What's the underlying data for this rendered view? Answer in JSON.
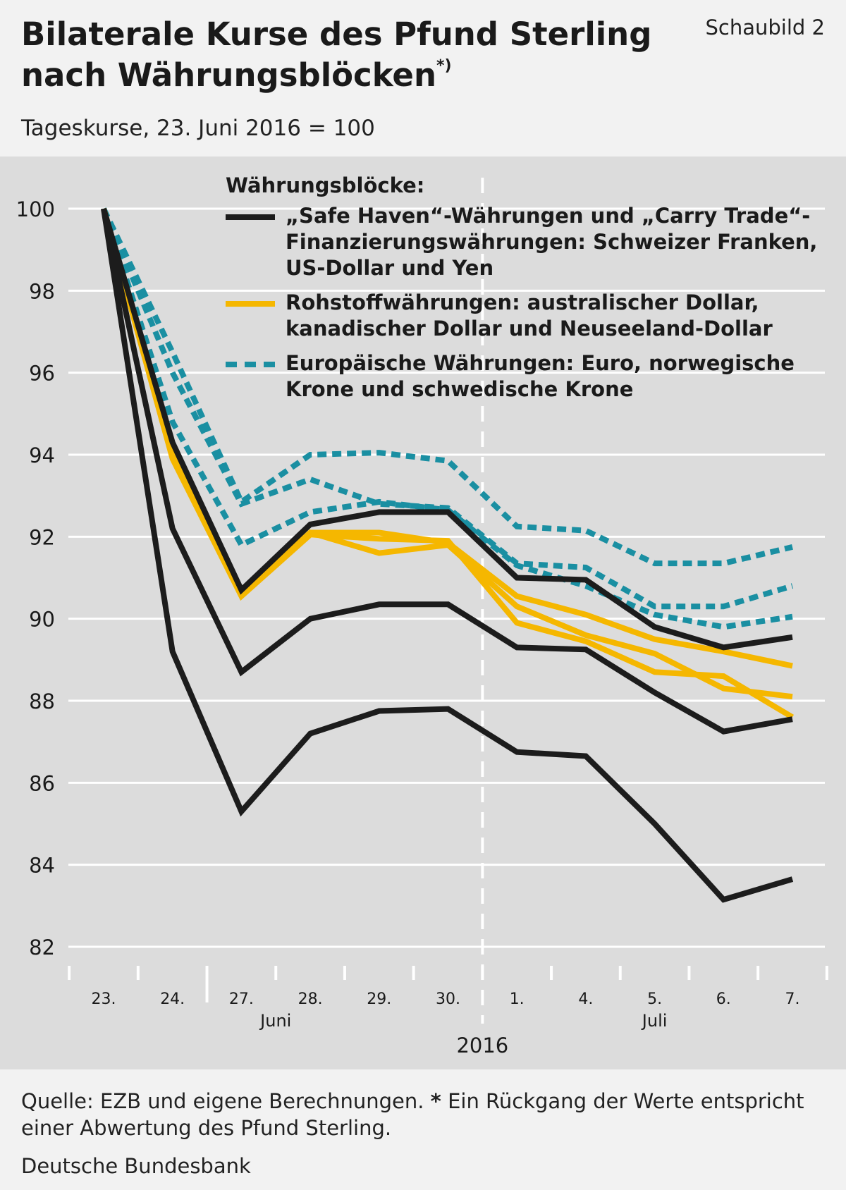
{
  "header": {
    "title_line1": "Bilaterale Kurse des Pfund Sterling",
    "title_line2": "nach Währungsblöcken",
    "title_sup": "*)",
    "figure_label": "Schaubild 2",
    "subtitle": "Tageskurse, 23. Juni 2016 = 100"
  },
  "footer": {
    "source_prefix": "Quelle: EZB und eigene Berechnungen.",
    "source_star": "*",
    "source_note": "Ein Rückgang der Werte entspricht einer Abwertung des Pfund Sterling.",
    "publisher": "Deutsche Bundesbank"
  },
  "legend": {
    "title": "Währungsblöcke:",
    "items": [
      {
        "label": "„Safe Haven“-Währungen und „Carry Trade“-Finanzierungswährungen: Schweizer Franken, US-Dollar und Yen",
        "color": "#1c1c1c",
        "style": "solid"
      },
      {
        "label": "Rohstoffwährungen: australischer Dollar, kanadischer Dollar und Neuseeland-Dollar",
        "color": "#f5b700",
        "style": "solid"
      },
      {
        "label": "Europäische Währungen: Euro, norwegische Krone und schwedische Krone",
        "color": "#1a8fa2",
        "style": "dashed"
      }
    ]
  },
  "chart_data": {
    "type": "line",
    "categories": [
      "23.",
      "24.",
      "27.",
      "28.",
      "29.",
      "30.",
      "1.",
      "4.",
      "5.",
      "6.",
      "7."
    ],
    "month_labels": [
      {
        "label": "Juni",
        "center_index": 2.5
      },
      {
        "label": "Juli",
        "center_index": 8
      }
    ],
    "year_label": "2016",
    "month_divider_after_index": 5,
    "ylim": [
      82,
      100
    ],
    "yticks": [
      82,
      84,
      86,
      88,
      90,
      92,
      94,
      96,
      98,
      100
    ],
    "grid": true,
    "legend_position": "top-right",
    "series": [
      {
        "group": "safe_haven",
        "color": "#1c1c1c",
        "style": "solid",
        "values": [
          100,
          94.3,
          90.7,
          92.3,
          92.6,
          92.6,
          91.0,
          90.95,
          89.8,
          89.3,
          89.55
        ]
      },
      {
        "group": "safe_haven",
        "color": "#1c1c1c",
        "style": "solid",
        "values": [
          100,
          92.2,
          88.7,
          90.0,
          90.35,
          90.35,
          89.3,
          89.25,
          88.2,
          87.25,
          87.55
        ]
      },
      {
        "group": "safe_haven",
        "color": "#1c1c1c",
        "style": "solid",
        "values": [
          100,
          89.2,
          85.3,
          87.2,
          87.75,
          87.8,
          86.75,
          86.65,
          85.0,
          83.15,
          83.65
        ]
      },
      {
        "group": "commodity",
        "color": "#f5b700",
        "style": "solid",
        "values": [
          100,
          94.1,
          90.65,
          92.1,
          92.1,
          91.85,
          90.55,
          90.1,
          89.5,
          89.2,
          88.85
        ]
      },
      {
        "group": "commodity",
        "color": "#f5b700",
        "style": "solid",
        "values": [
          100,
          94.0,
          90.6,
          92.1,
          91.6,
          91.8,
          90.3,
          89.6,
          89.15,
          88.3,
          88.1
        ]
      },
      {
        "group": "commodity",
        "color": "#f5b700",
        "style": "solid",
        "values": [
          100,
          93.9,
          90.55,
          92.05,
          91.95,
          91.9,
          89.9,
          89.45,
          88.7,
          88.6,
          87.6
        ]
      },
      {
        "group": "european",
        "color": "#1a8fa2",
        "style": "dashed",
        "values": [
          100,
          96.5,
          92.85,
          94.0,
          94.05,
          93.85,
          92.25,
          92.15,
          91.35,
          91.35,
          91.75
        ]
      },
      {
        "group": "european",
        "color": "#1a8fa2",
        "style": "dashed",
        "values": [
          100,
          96.0,
          92.8,
          93.4,
          92.8,
          92.7,
          91.35,
          91.25,
          90.3,
          90.3,
          90.8
        ]
      },
      {
        "group": "european",
        "color": "#1a8fa2",
        "style": "dashed",
        "values": [
          100,
          94.8,
          91.8,
          92.6,
          92.85,
          92.65,
          91.3,
          90.8,
          90.1,
          89.8,
          90.05
        ]
      }
    ]
  }
}
